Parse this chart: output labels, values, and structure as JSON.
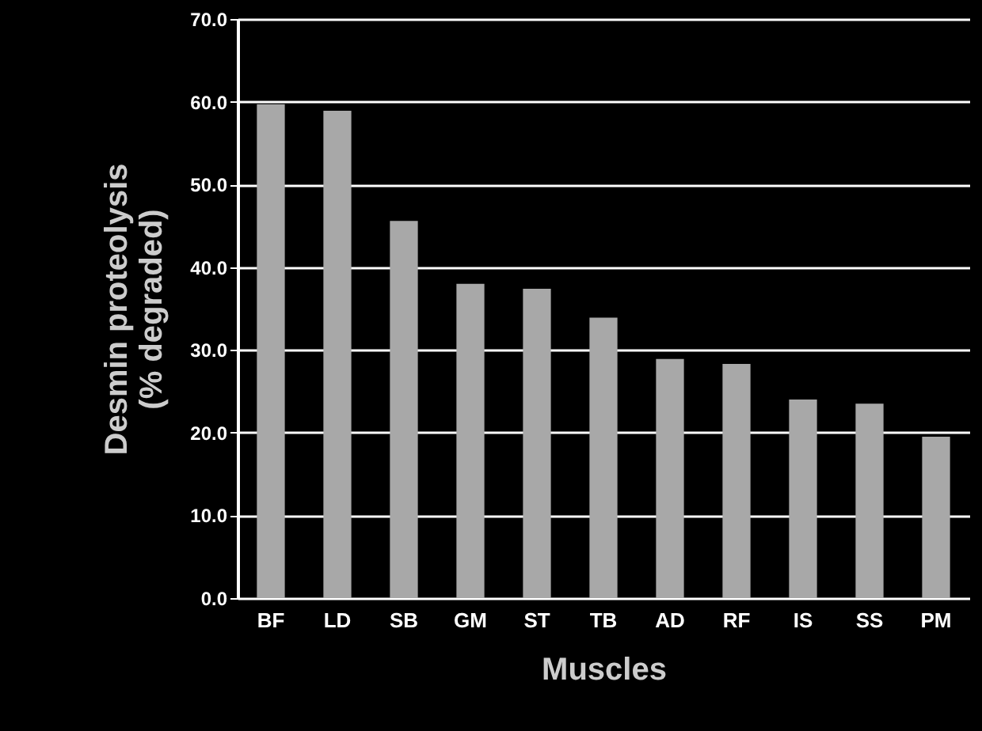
{
  "chart_data": {
    "type": "bar",
    "xlabel": "Muscles",
    "ylabel": "Desmin proteolysis\n(% degraded)",
    "categories": [
      "BF",
      "LD",
      "SB",
      "GM",
      "ST",
      "TB",
      "AD",
      "RF",
      "IS",
      "SS",
      "PM"
    ],
    "values": [
      59.7,
      58.9,
      45.6,
      38.0,
      37.4,
      33.9,
      28.9,
      28.3,
      24.0,
      23.5,
      19.5
    ],
    "color": "#a8a8a8",
    "ylim": [
      0,
      70
    ],
    "yticks": [
      {
        "value": 0,
        "label": "0.0"
      },
      {
        "value": 10,
        "label": "10.0"
      },
      {
        "value": 20,
        "label": "20.0"
      },
      {
        "value": 30,
        "label": "30.0"
      },
      {
        "value": 40,
        "label": "40.0"
      },
      {
        "value": 50,
        "label": "50.0"
      },
      {
        "value": 60,
        "label": "60.0"
      },
      {
        "value": 70,
        "label": "70.0"
      }
    ],
    "grid": "y"
  }
}
